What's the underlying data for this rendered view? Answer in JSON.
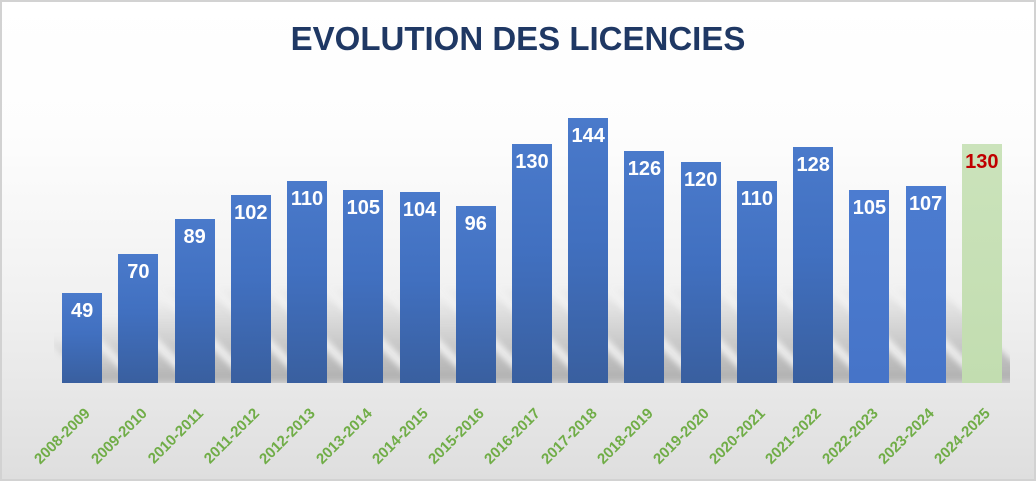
{
  "chart_data": {
    "type": "bar",
    "title": "EVOLUTION DES LICENCIES",
    "categories": [
      "2008-2009",
      "2009-2010",
      "2010-2011",
      "2011-2012",
      "2012-2013",
      "2013-2014",
      "2014-2015",
      "2015-2016",
      "2016-2017",
      "2017-2018",
      "2018-2019",
      "2019-2020",
      "2020-2021",
      "2021-2022",
      "2022-2023",
      "2023-2024",
      "2024-2025"
    ],
    "values": [
      49,
      70,
      89,
      102,
      110,
      105,
      104,
      96,
      130,
      144,
      126,
      120,
      110,
      128,
      105,
      107,
      130
    ],
    "bar_styles": [
      "gradient",
      "gradient",
      "gradient",
      "gradient",
      "gradient",
      "gradient",
      "gradient",
      "gradient",
      "gradient",
      "gradient",
      "gradient",
      "gradient",
      "gradient",
      "gradient",
      "flat",
      "flat",
      "green"
    ],
    "xlabel": "",
    "ylabel": "",
    "ylim": [
      0,
      150
    ],
    "grid": false,
    "legend": false,
    "value_label_position": "inside-top",
    "colors": {
      "bar_blue": "#4472C4",
      "bar_blue_light": "#4C7CD0",
      "bar_green_highlight": "#C6E0B4",
      "value_label": "#FFFFFF",
      "highlight_value_label": "#C00000",
      "axis_label": "#70AD47",
      "title": "#1F3864",
      "background_top": "#FFFFFF",
      "background_bottom": "#DEDEDE"
    }
  }
}
